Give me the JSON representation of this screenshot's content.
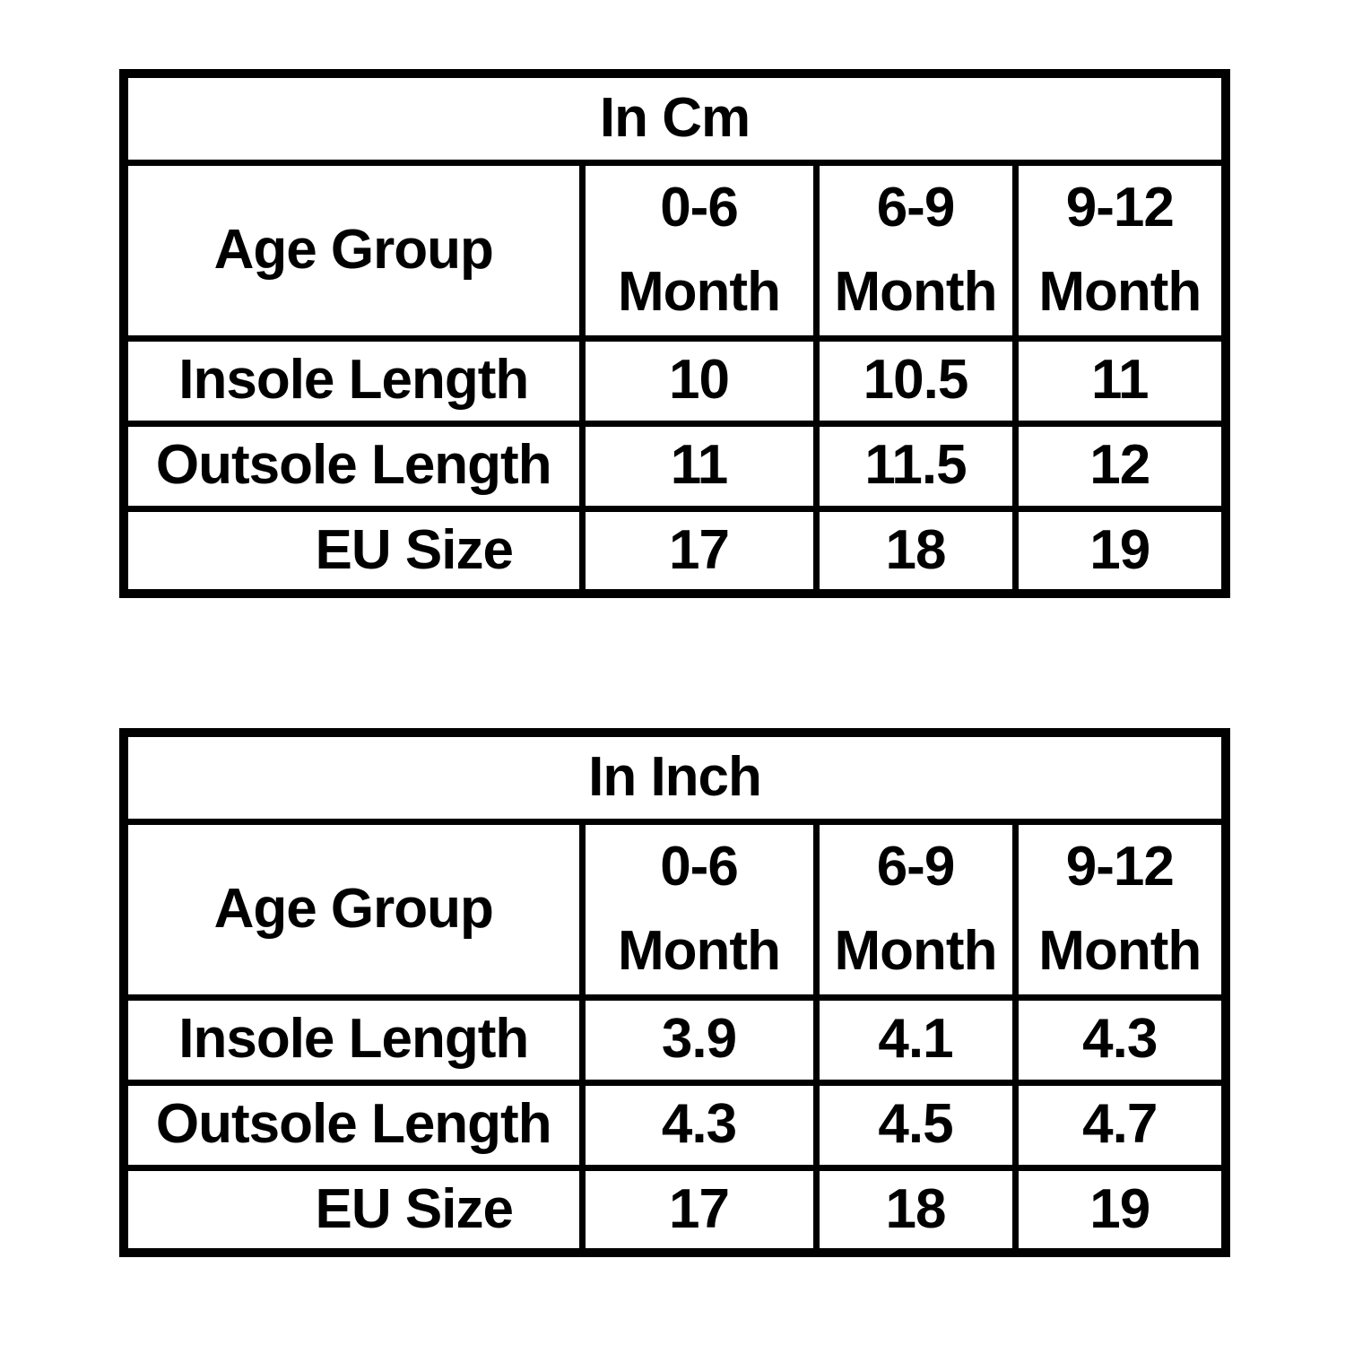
{
  "page": {
    "background_color": "#ffffff",
    "border_color": "#000000",
    "text_color": "#000000"
  },
  "chart_data": [
    {
      "type": "table",
      "title": "In Cm",
      "columns": [
        "Age Group",
        "0-6 Month",
        "6-9 Month",
        "9-12 Month"
      ],
      "header": {
        "corner_label": "Age Group",
        "age_ranges": [
          "0-6",
          "6-9",
          "9-12"
        ],
        "month_word": "Month"
      },
      "rows": [
        {
          "label": "Insole Length",
          "values": [
            "10",
            "10.5",
            "11"
          ]
        },
        {
          "label": "Outsole Length",
          "values": [
            "11",
            "11.5",
            "12"
          ]
        },
        {
          "label": "EU Size",
          "values": [
            "17",
            "18",
            "19"
          ]
        }
      ]
    },
    {
      "type": "table",
      "title": "In Inch",
      "columns": [
        "Age Group",
        "0-6 Month",
        "6-9 Month",
        "9-12 Month"
      ],
      "header": {
        "corner_label": "Age Group",
        "age_ranges": [
          "0-6",
          "6-9",
          "9-12"
        ],
        "month_word": "Month"
      },
      "rows": [
        {
          "label": "Insole Length",
          "values": [
            "3.9",
            "4.1",
            "4.3"
          ]
        },
        {
          "label": "Outsole Length",
          "values": [
            "4.3",
            "4.5",
            "4.7"
          ]
        },
        {
          "label": "EU Size",
          "values": [
            "17",
            "18",
            "19"
          ]
        }
      ]
    }
  ]
}
